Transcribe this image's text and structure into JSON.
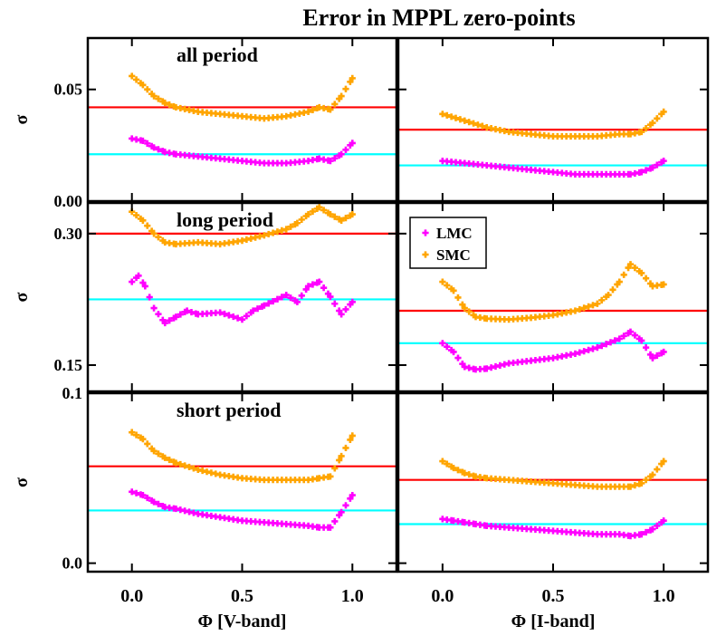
{
  "title": "Error in MPPL zero-points",
  "colors": {
    "lmc": "#ff00ff",
    "smc": "#ffa500",
    "red_line": "#ff0000",
    "cyan_line": "#00ffff",
    "frame": "#000000"
  },
  "chart_data": [
    {
      "type": "scatter",
      "row": "all period",
      "band": "V",
      "label": "all period",
      "ylabel": "σ",
      "xlabel": "",
      "xlim": [
        -0.2,
        1.2
      ],
      "ylim": [
        0.0,
        0.073
      ],
      "yticks": [
        {
          "v": 0.0,
          "t": "0.00"
        },
        {
          "v": 0.05,
          "t": "0.05"
        }
      ],
      "hlines": [
        {
          "y": 0.042,
          "color": "red"
        },
        {
          "y": 0.021,
          "color": "cyan"
        }
      ],
      "series": [
        {
          "name": "SMC",
          "x": [
            0.0,
            0.05,
            0.1,
            0.15,
            0.2,
            0.3,
            0.4,
            0.5,
            0.6,
            0.7,
            0.8,
            0.85,
            0.9,
            0.95,
            1.0
          ],
          "y": [
            0.056,
            0.052,
            0.047,
            0.044,
            0.042,
            0.04,
            0.039,
            0.038,
            0.037,
            0.038,
            0.04,
            0.042,
            0.041,
            0.047,
            0.055
          ]
        },
        {
          "name": "LMC",
          "x": [
            0.0,
            0.05,
            0.1,
            0.15,
            0.2,
            0.3,
            0.4,
            0.5,
            0.6,
            0.7,
            0.8,
            0.85,
            0.9,
            0.95,
            1.0
          ],
          "y": [
            0.028,
            0.027,
            0.024,
            0.022,
            0.021,
            0.02,
            0.019,
            0.018,
            0.017,
            0.017,
            0.018,
            0.019,
            0.018,
            0.021,
            0.026
          ]
        }
      ]
    },
    {
      "type": "scatter",
      "row": "all period",
      "band": "I",
      "label": "",
      "ylabel": "",
      "xlabel": "",
      "xlim": [
        -0.2,
        1.2
      ],
      "ylim": [
        0.0,
        0.073
      ],
      "yticks": [],
      "hlines": [
        {
          "y": 0.032,
          "color": "red"
        },
        {
          "y": 0.016,
          "color": "cyan"
        }
      ],
      "series": [
        {
          "name": "SMC",
          "x": [
            0.0,
            0.1,
            0.2,
            0.3,
            0.4,
            0.5,
            0.6,
            0.7,
            0.8,
            0.85,
            0.9,
            0.95,
            1.0
          ],
          "y": [
            0.039,
            0.036,
            0.033,
            0.031,
            0.03,
            0.029,
            0.029,
            0.029,
            0.03,
            0.03,
            0.031,
            0.035,
            0.04
          ]
        },
        {
          "name": "LMC",
          "x": [
            0.0,
            0.1,
            0.2,
            0.3,
            0.4,
            0.5,
            0.6,
            0.7,
            0.8,
            0.85,
            0.9,
            0.95,
            1.0
          ],
          "y": [
            0.018,
            0.017,
            0.016,
            0.015,
            0.014,
            0.013,
            0.012,
            0.012,
            0.012,
            0.012,
            0.013,
            0.015,
            0.018
          ]
        }
      ]
    },
    {
      "type": "scatter",
      "row": "long period",
      "band": "V",
      "label": "long period",
      "ylabel": "σ",
      "xlabel": "",
      "xlim": [
        -0.2,
        1.2
      ],
      "ylim": [
        0.12,
        0.335
      ],
      "yticks": [
        {
          "v": 0.15,
          "t": "0.15"
        },
        {
          "v": 0.3,
          "t": "0.30"
        }
      ],
      "hlines": [
        {
          "y": 0.3,
          "color": "red"
        },
        {
          "y": 0.225,
          "color": "cyan"
        }
      ],
      "series": [
        {
          "name": "SMC",
          "x": [
            0.0,
            0.05,
            0.1,
            0.15,
            0.2,
            0.3,
            0.4,
            0.5,
            0.6,
            0.7,
            0.75,
            0.8,
            0.85,
            0.9,
            0.95,
            1.0
          ],
          "y": [
            0.325,
            0.315,
            0.3,
            0.29,
            0.288,
            0.29,
            0.288,
            0.292,
            0.298,
            0.305,
            0.312,
            0.322,
            0.33,
            0.322,
            0.315,
            0.322
          ]
        },
        {
          "name": "LMC",
          "x": [
            0.0,
            0.03,
            0.06,
            0.1,
            0.15,
            0.2,
            0.25,
            0.3,
            0.4,
            0.5,
            0.55,
            0.6,
            0.7,
            0.75,
            0.8,
            0.85,
            0.9,
            0.95,
            1.0
          ],
          "y": [
            0.245,
            0.252,
            0.24,
            0.215,
            0.198,
            0.205,
            0.212,
            0.208,
            0.21,
            0.202,
            0.212,
            0.218,
            0.23,
            0.222,
            0.24,
            0.245,
            0.228,
            0.208,
            0.222
          ]
        }
      ]
    },
    {
      "type": "scatter",
      "row": "long period",
      "band": "I",
      "label": "",
      "ylabel": "",
      "xlabel": "",
      "xlim": [
        -0.2,
        1.2
      ],
      "ylim": [
        0.12,
        0.335
      ],
      "yticks": [],
      "hlines": [
        {
          "y": 0.212,
          "color": "red"
        },
        {
          "y": 0.175,
          "color": "cyan"
        }
      ],
      "series": [
        {
          "name": "SMC",
          "x": [
            0.0,
            0.05,
            0.1,
            0.15,
            0.2,
            0.3,
            0.4,
            0.5,
            0.6,
            0.7,
            0.75,
            0.8,
            0.85,
            0.9,
            0.95,
            1.0
          ],
          "y": [
            0.245,
            0.235,
            0.215,
            0.205,
            0.203,
            0.202,
            0.204,
            0.207,
            0.212,
            0.22,
            0.23,
            0.245,
            0.265,
            0.255,
            0.24,
            0.242
          ]
        },
        {
          "name": "LMC",
          "x": [
            0.0,
            0.05,
            0.1,
            0.15,
            0.2,
            0.3,
            0.4,
            0.5,
            0.6,
            0.7,
            0.8,
            0.85,
            0.9,
            0.95,
            1.0
          ],
          "y": [
            0.175,
            0.165,
            0.148,
            0.145,
            0.146,
            0.152,
            0.155,
            0.158,
            0.163,
            0.17,
            0.18,
            0.188,
            0.178,
            0.158,
            0.165
          ]
        }
      ]
    },
    {
      "type": "scatter",
      "row": "short period",
      "band": "V",
      "label": "short period",
      "ylabel": "σ",
      "xlabel": "Φ [V-band]",
      "xlim": [
        -0.2,
        1.2
      ],
      "ylim": [
        -0.005,
        0.1
      ],
      "yticks": [
        {
          "v": 0.0,
          "t": "0.0"
        },
        {
          "v": 0.1,
          "t": "0.1"
        }
      ],
      "xticks": [
        {
          "v": 0.0,
          "t": "0.0"
        },
        {
          "v": 0.5,
          "t": "0.5"
        },
        {
          "v": 1.0,
          "t": "1.0"
        }
      ],
      "hlines": [
        {
          "y": 0.057,
          "color": "red"
        },
        {
          "y": 0.031,
          "color": "cyan"
        }
      ],
      "series": [
        {
          "name": "SMC",
          "x": [
            0.0,
            0.05,
            0.1,
            0.15,
            0.2,
            0.3,
            0.4,
            0.5,
            0.6,
            0.7,
            0.8,
            0.85,
            0.9,
            0.95,
            1.0
          ],
          "y": [
            0.077,
            0.073,
            0.066,
            0.062,
            0.059,
            0.055,
            0.052,
            0.05,
            0.049,
            0.049,
            0.049,
            0.05,
            0.051,
            0.063,
            0.075
          ]
        },
        {
          "name": "LMC",
          "x": [
            0.0,
            0.05,
            0.1,
            0.15,
            0.2,
            0.3,
            0.4,
            0.5,
            0.6,
            0.7,
            0.8,
            0.85,
            0.9,
            0.95,
            1.0
          ],
          "y": [
            0.042,
            0.04,
            0.036,
            0.033,
            0.032,
            0.029,
            0.027,
            0.025,
            0.024,
            0.023,
            0.022,
            0.021,
            0.021,
            0.03,
            0.04
          ]
        }
      ]
    },
    {
      "type": "scatter",
      "row": "short period",
      "band": "I",
      "label": "",
      "ylabel": "",
      "xlabel": "Φ [I-band]",
      "xlim": [
        -0.2,
        1.2
      ],
      "ylim": [
        -0.005,
        0.1
      ],
      "yticks": [],
      "xticks": [
        {
          "v": 0.0,
          "t": "0.0"
        },
        {
          "v": 0.5,
          "t": "0.5"
        },
        {
          "v": 1.0,
          "t": "1.0"
        }
      ],
      "hlines": [
        {
          "y": 0.049,
          "color": "red"
        },
        {
          "y": 0.023,
          "color": "cyan"
        }
      ],
      "legend": {
        "placement": "top-left",
        "entries": [
          {
            "name": "LMC",
            "color": "lmc"
          },
          {
            "name": "SMC",
            "color": "smc"
          }
        ]
      },
      "series": [
        {
          "name": "SMC",
          "x": [
            0.0,
            0.05,
            0.1,
            0.15,
            0.2,
            0.3,
            0.4,
            0.5,
            0.6,
            0.7,
            0.8,
            0.85,
            0.9,
            0.95,
            1.0
          ],
          "y": [
            0.06,
            0.056,
            0.053,
            0.051,
            0.05,
            0.049,
            0.048,
            0.047,
            0.046,
            0.045,
            0.045,
            0.045,
            0.047,
            0.052,
            0.06
          ]
        },
        {
          "name": "LMC",
          "x": [
            0.0,
            0.05,
            0.1,
            0.15,
            0.2,
            0.3,
            0.4,
            0.5,
            0.6,
            0.7,
            0.8,
            0.85,
            0.9,
            0.95,
            1.0
          ],
          "y": [
            0.026,
            0.025,
            0.024,
            0.023,
            0.022,
            0.021,
            0.02,
            0.019,
            0.018,
            0.017,
            0.017,
            0.016,
            0.017,
            0.02,
            0.025
          ]
        }
      ]
    }
  ]
}
